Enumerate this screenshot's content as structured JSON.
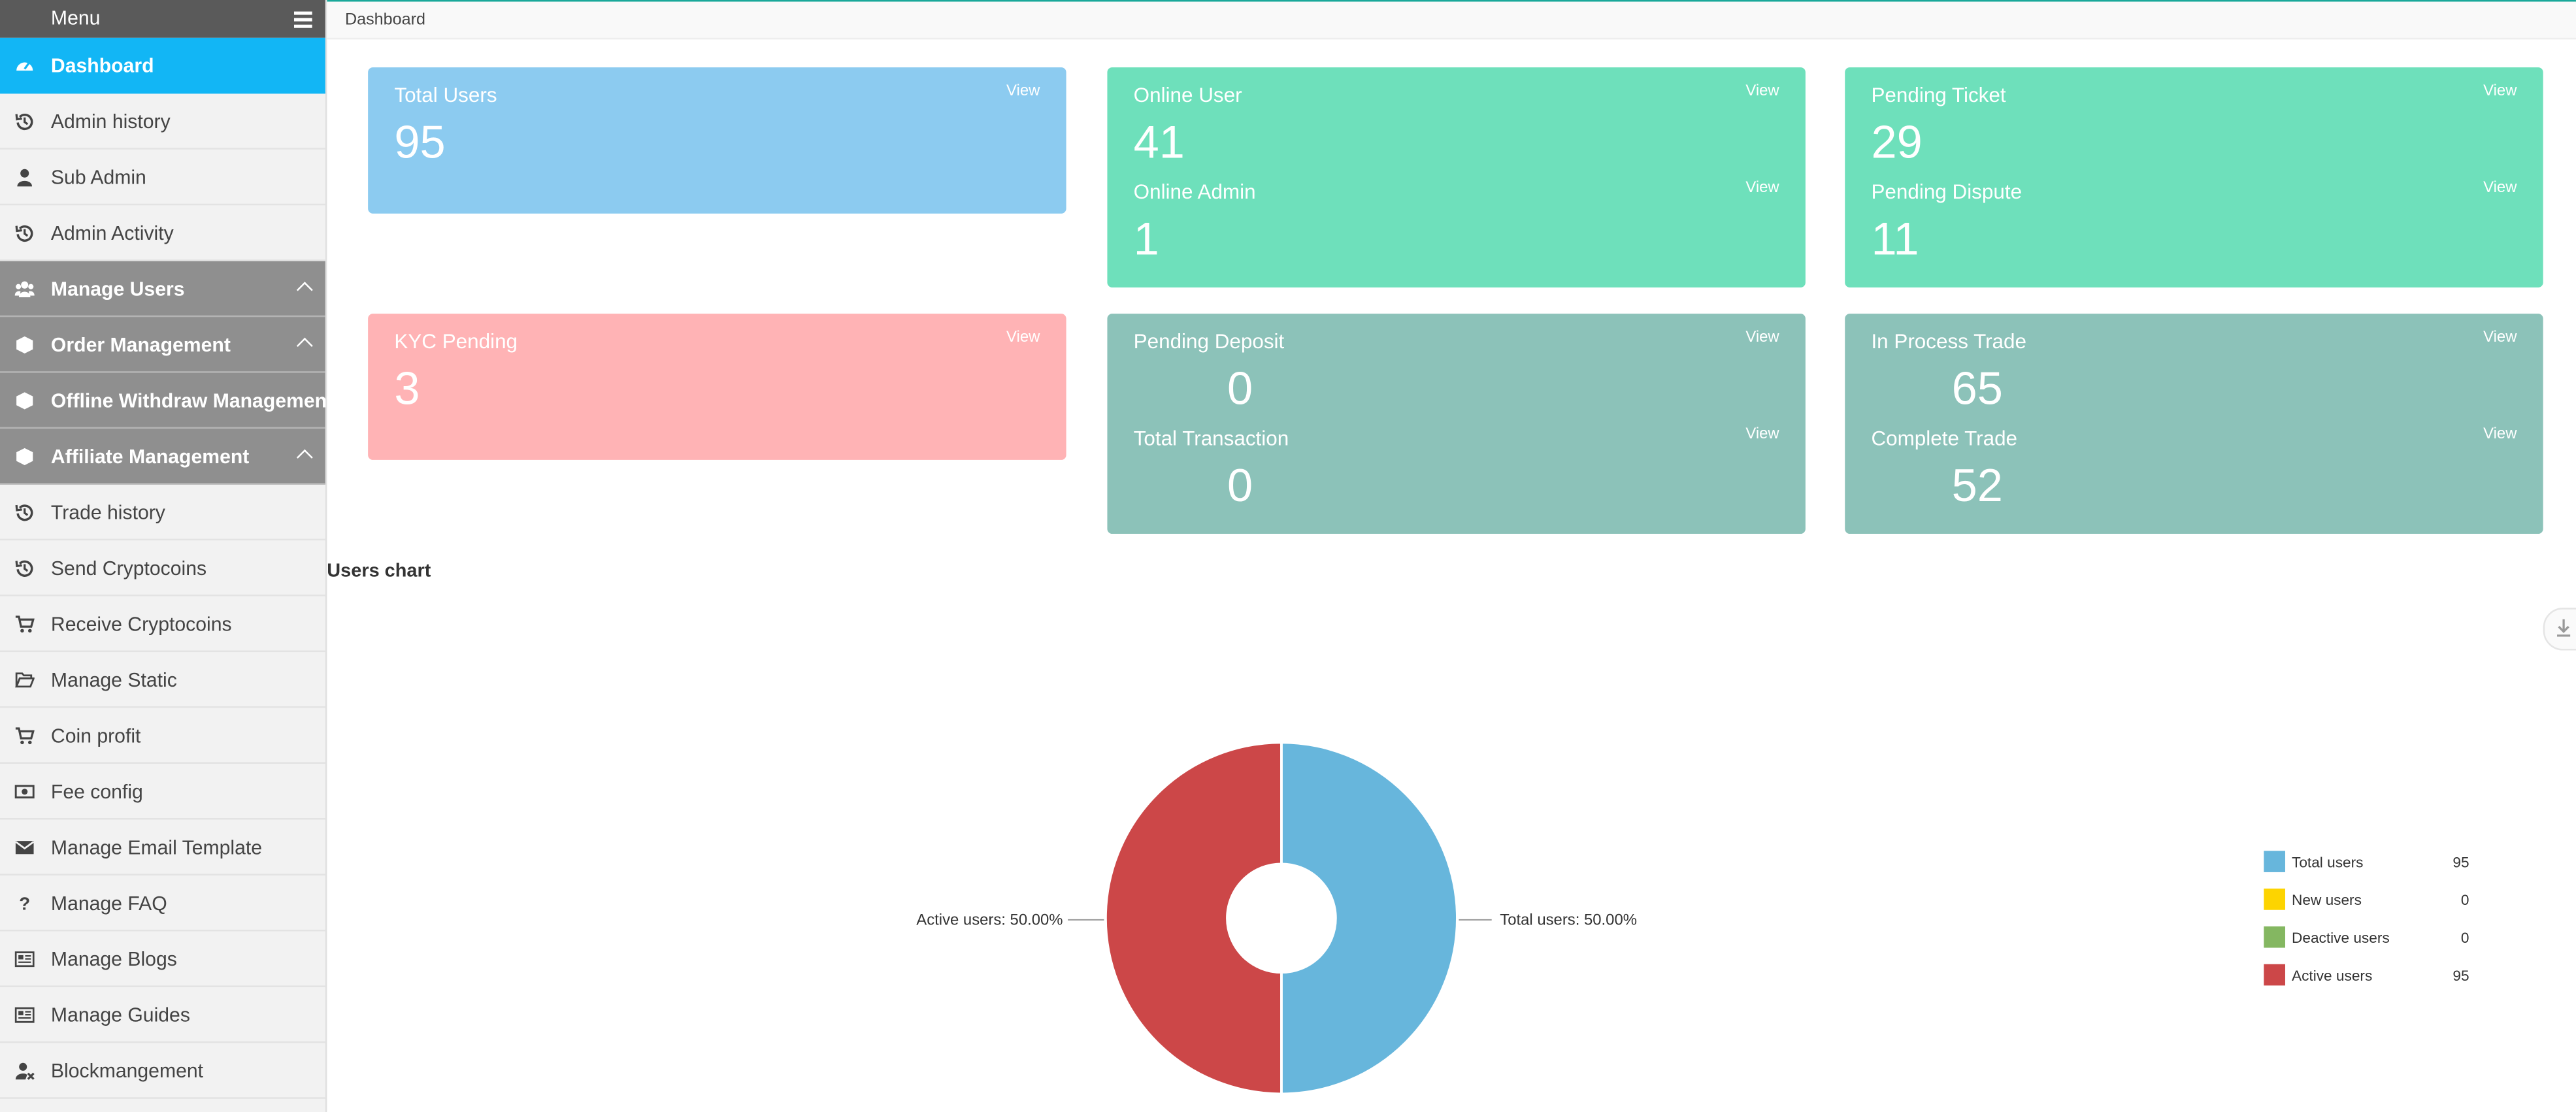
{
  "sidebar": {
    "menu_label": "Menu",
    "items": [
      {
        "label": "Dashboard",
        "icon": "dashboard-icon"
      },
      {
        "label": "Admin history",
        "icon": "history-icon"
      },
      {
        "label": "Sub Admin",
        "icon": "user-icon"
      },
      {
        "label": "Admin Activity",
        "icon": "history-icon"
      },
      {
        "label": "Manage Users",
        "icon": "users-icon"
      },
      {
        "label": "Order Management",
        "icon": "cube-icon"
      },
      {
        "label": "Offline Withdraw Management",
        "icon": "cube-icon"
      },
      {
        "label": "Affiliate Management",
        "icon": "cube-icon"
      },
      {
        "label": "Trade history",
        "icon": "history-icon"
      },
      {
        "label": "Send Cryptocoins",
        "icon": "history-icon"
      },
      {
        "label": "Receive Cryptocoins",
        "icon": "cart-icon"
      },
      {
        "label": "Manage Static",
        "icon": "folder-open-icon"
      },
      {
        "label": "Coin profit",
        "icon": "cart-icon"
      },
      {
        "label": "Fee config",
        "icon": "money-icon"
      },
      {
        "label": "Manage Email Template",
        "icon": "envelope-icon"
      },
      {
        "label": "Manage FAQ",
        "icon": "question-icon"
      },
      {
        "label": "Manage Blogs",
        "icon": "newspaper-icon"
      },
      {
        "label": "Manage Guides",
        "icon": "newspaper-icon"
      },
      {
        "label": "Blockmangement",
        "icon": "user-block-icon"
      }
    ]
  },
  "breadcrumb": "Dashboard",
  "view_label": "View",
  "cards": {
    "total_users": {
      "title": "Total Users",
      "value": "95"
    },
    "online_user": {
      "title": "Online User",
      "value": "41"
    },
    "online_admin": {
      "title": "Online Admin",
      "value": "1"
    },
    "pending_ticket": {
      "title": "Pending Ticket",
      "value": "29"
    },
    "pending_dispute": {
      "title": "Pending Dispute",
      "value": "11"
    },
    "kyc_pending": {
      "title": "KYC Pending",
      "value": "3"
    },
    "pending_deposit": {
      "title": "Pending Deposit",
      "value": "0"
    },
    "total_transaction": {
      "title": "Total Transaction",
      "value": "0"
    },
    "in_process_trade": {
      "title": "In Process Trade",
      "value": "65"
    },
    "complete_trade": {
      "title": "Complete Trade",
      "value": "52"
    }
  },
  "colors": {
    "accent": "#12b6f5",
    "card_blue": "#8ccbf0",
    "card_green": "#6ee0bb",
    "card_pink": "#ffb3b5",
    "card_teal": "#8cc2b9"
  },
  "users_chart": {
    "title": "Users chart"
  },
  "chart_data": {
    "type": "pie",
    "legend_position": "right",
    "slices": [
      {
        "label": "Total users",
        "value": 95,
        "color": "#67b6dc"
      },
      {
        "label": "New users",
        "value": 0,
        "color": "#fdd400"
      },
      {
        "label": "Deactive users",
        "value": 0,
        "color": "#84b761"
      },
      {
        "label": "Active users",
        "value": 95,
        "color": "#cc4748"
      }
    ],
    "slice_labels": [
      {
        "text": "Total users: 50.00%"
      },
      {
        "text": "Active users: 50.00%"
      }
    ]
  }
}
